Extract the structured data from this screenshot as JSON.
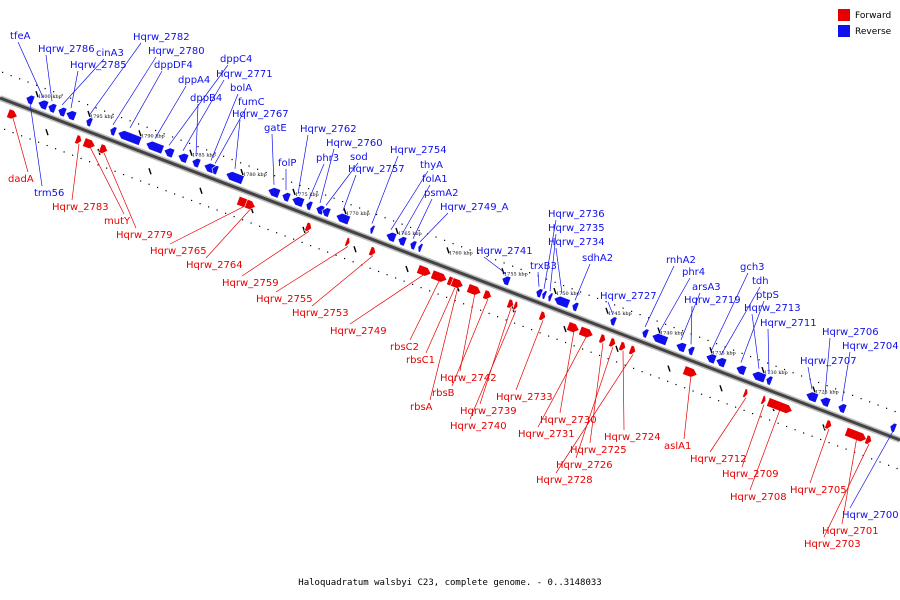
{
  "caption": "Haloquadratum walsbyi C23, complete genome. - 0..3148033",
  "legend": [
    {
      "label": "Forward",
      "color": "#e80000"
    },
    {
      "label": "Reverse",
      "color": "#1010ee"
    }
  ],
  "colors": {
    "forward": "#e80000",
    "reverse": "#1010ee",
    "backbone": "#444444",
    "tick": "#000000"
  },
  "kbp_markers": [
    "1800 kbp",
    "1795 kbp",
    "1790 kbp",
    "1785 kbp",
    "1780 kbp",
    "1775 kbp",
    "1770 kbp",
    "1765 kbp",
    "1760 kbp",
    "1755 kbp",
    "1750 kbp",
    "1745 kbp",
    "1740 kbp",
    "1735 kbp",
    "1730 kbp",
    "1725 kbp"
  ],
  "reverse_genes": [
    "tfeA",
    "Hqrw_2786",
    "cinA3",
    "Hqrw_2785",
    "Hqrw_2782",
    "Hqrw_2780",
    "dppDF4",
    "dppA4",
    "dppC4",
    "Hqrw_2771",
    "dppB4",
    "bolA",
    "fumC",
    "Hqrw_2767",
    "gatE",
    "folP",
    "Hqrw_2762",
    "phr3",
    "Hqrw_2760",
    "sod",
    "Hqrw_2757",
    "Hqrw_2754",
    "thyA",
    "folA1",
    "psmA2",
    "Hqrw_2749_A",
    "Hqrw_2741",
    "trxB3",
    "Hqrw_2736",
    "Hqrw_2735",
    "Hqrw_2734",
    "sdhA2",
    "Hqrw_2727",
    "rnhA2",
    "phr4",
    "arsA3",
    "Hqrw_2719",
    "gch3",
    "tdh",
    "ptpS",
    "Hqrw_2713",
    "Hqrw_2711",
    "Hqrw_2707",
    "Hqrw_2706",
    "Hqrw_2704",
    "Hqrw_2700",
    "trm56"
  ],
  "forward_genes": [
    "dadA",
    "Hqrw_2783",
    "mutY",
    "Hqrw_2779",
    "Hqrw_2765",
    "Hqrw_2764",
    "Hqrw_2759",
    "Hqrw_2755",
    "Hqrw_2753",
    "Hqrw_2749",
    "rbsC2",
    "rbsC1",
    "Hqrw_2742",
    "rbsB",
    "rbsA",
    "Hqrw_2739",
    "Hqrw_2740",
    "Hqrw_2733",
    "Hqrw_2730",
    "Hqrw_2731",
    "Hqrw_2725",
    "Hqrw_2726",
    "Hqrw_2724",
    "Hqrw_2728",
    "aslA1",
    "Hqrw_2712",
    "Hqrw_2709",
    "Hqrw_2708",
    "Hqrw_2705",
    "Hqrw_2701",
    "Hqrw_2703"
  ]
}
